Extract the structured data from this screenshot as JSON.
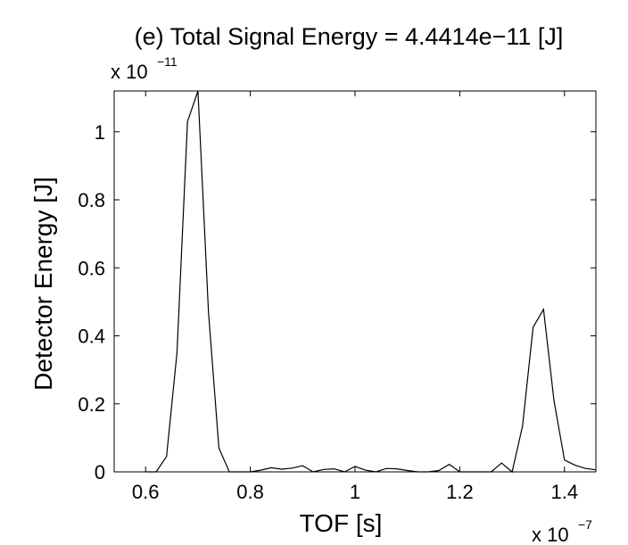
{
  "chart_data": {
    "type": "line",
    "title": "(e) Total Signal Energy = 4.4414e−11 [J]",
    "xlabel": "TOF [s]",
    "ylabel": "Detector Energy [J]",
    "x_multiplier": {
      "base": "x 10",
      "exponent": "−7"
    },
    "y_multiplier": {
      "base": "x 10",
      "exponent": "−11"
    },
    "xlim": [
      0.54,
      1.46
    ],
    "ylim": [
      0,
      1.12
    ],
    "x_ticks": [
      0.6,
      0.8,
      1.0,
      1.2,
      1.4
    ],
    "x_tick_labels": [
      "0.6",
      "0.8",
      "1",
      "1.2",
      "1.4"
    ],
    "y_ticks": [
      0,
      0.2,
      0.4,
      0.6,
      0.8,
      1.0
    ],
    "y_tick_labels": [
      "0",
      "0.2",
      "0.4",
      "0.6",
      "0.8",
      "1"
    ],
    "grid": false,
    "line_color": "#000000",
    "series": [
      {
        "x": [
          0.6,
          0.62,
          0.64,
          0.66,
          0.68,
          0.7,
          0.72,
          0.74,
          0.76,
          0.78,
          0.8,
          0.82,
          0.84,
          0.86,
          0.88,
          0.9,
          0.92,
          0.94,
          0.96,
          0.98,
          1.0,
          1.02,
          1.04,
          1.06,
          1.08,
          1.1,
          1.12,
          1.14,
          1.16,
          1.18,
          1.2,
          1.22,
          1.24,
          1.26,
          1.28,
          1.3,
          1.32,
          1.34,
          1.36,
          1.38,
          1.4,
          1.42,
          1.44,
          1.46
        ],
        "values": [
          0.0,
          0.0,
          0.045,
          0.35,
          1.03,
          1.12,
          0.47,
          0.07,
          0.0,
          0.0,
          0.0,
          0.005,
          0.012,
          0.008,
          0.011,
          0.018,
          0.0,
          0.007,
          0.009,
          0.0,
          0.016,
          0.005,
          0.0,
          0.01,
          0.009,
          0.004,
          0.0,
          0.0,
          0.004,
          0.022,
          0.0,
          0.0,
          0.0,
          0.0,
          0.026,
          0.0,
          0.135,
          0.425,
          0.478,
          0.21,
          0.035,
          0.02,
          0.01,
          0.006
        ]
      }
    ]
  }
}
